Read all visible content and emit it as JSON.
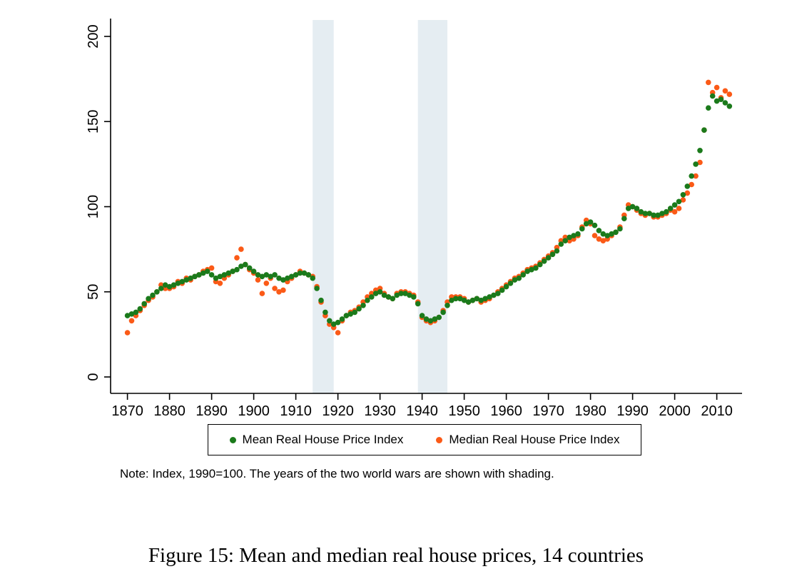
{
  "figure": {
    "note": "Note: Index, 1990=100. The years of the two world wars are shown with shading.",
    "caption": "Figure 15: Mean and median real house prices, 14 countries"
  },
  "legend": {
    "items": [
      {
        "label": "Mean Real House Price Index",
        "color": "#1b7a1b"
      },
      {
        "label": "Median Real House Price Index",
        "color": "#fb5a17"
      }
    ]
  },
  "chart_data": {
    "type": "scatter",
    "title": "",
    "xlabel": "",
    "ylabel": "",
    "ylim": [
      0,
      205
    ],
    "xlim": [
      1866,
      2016
    ],
    "y_ticks": [
      0,
      50,
      100,
      150,
      200
    ],
    "x_ticks": [
      1870,
      1880,
      1890,
      1900,
      1910,
      1920,
      1930,
      1940,
      1950,
      1960,
      1970,
      1980,
      1990,
      2000,
      2010
    ],
    "grid": false,
    "legend_position": "bottom",
    "shading_color": "#e5edf2",
    "shaded_regions": [
      {
        "label": "World War I",
        "start": 1914,
        "end": 1918
      },
      {
        "label": "World War II",
        "start": 1939,
        "end": 1945
      }
    ],
    "x": [
      1870,
      1871,
      1872,
      1873,
      1874,
      1875,
      1876,
      1877,
      1878,
      1879,
      1880,
      1881,
      1882,
      1883,
      1884,
      1885,
      1886,
      1887,
      1888,
      1889,
      1890,
      1891,
      1892,
      1893,
      1894,
      1895,
      1896,
      1897,
      1898,
      1899,
      1900,
      1901,
      1902,
      1903,
      1904,
      1905,
      1906,
      1907,
      1908,
      1909,
      1910,
      1911,
      1912,
      1913,
      1914,
      1915,
      1916,
      1917,
      1918,
      1919,
      1920,
      1921,
      1922,
      1923,
      1924,
      1925,
      1926,
      1927,
      1928,
      1929,
      1930,
      1931,
      1932,
      1933,
      1934,
      1935,
      1936,
      1937,
      1938,
      1939,
      1940,
      1941,
      1942,
      1943,
      1944,
      1945,
      1946,
      1947,
      1948,
      1949,
      1950,
      1951,
      1952,
      1953,
      1954,
      1955,
      1956,
      1957,
      1958,
      1959,
      1960,
      1961,
      1962,
      1963,
      1964,
      1965,
      1966,
      1967,
      1968,
      1969,
      1970,
      1971,
      1972,
      1973,
      1974,
      1975,
      1976,
      1977,
      1978,
      1979,
      1980,
      1981,
      1982,
      1983,
      1984,
      1985,
      1986,
      1987,
      1988,
      1989,
      1990,
      1991,
      1992,
      1993,
      1994,
      1995,
      1996,
      1997,
      1998,
      1999,
      2000,
      2001,
      2002,
      2003,
      2004,
      2005,
      2006,
      2007,
      2008,
      2009,
      2010,
      2011,
      2012,
      2013
    ],
    "series": [
      {
        "name": "Mean Real House Price Index",
        "color": "#1b7a1b",
        "values": [
          36,
          37,
          38,
          40,
          43,
          46,
          48,
          50,
          52,
          54,
          53,
          54,
          55,
          56,
          57,
          58,
          59,
          60,
          61,
          62,
          60,
          58,
          59,
          60,
          61,
          62,
          63,
          65,
          66,
          64,
          62,
          60,
          59,
          60,
          59,
          60,
          58,
          57,
          58,
          59,
          60,
          61,
          61,
          60,
          58,
          52,
          45,
          38,
          33,
          31,
          32,
          34,
          36,
          37,
          38,
          40,
          42,
          45,
          47,
          49,
          50,
          48,
          47,
          46,
          48,
          49,
          49,
          48,
          47,
          43,
          36,
          34,
          33,
          34,
          35,
          38,
          42,
          45,
          46,
          46,
          45,
          44,
          45,
          46,
          45,
          46,
          47,
          48,
          49,
          51,
          53,
          55,
          57,
          58,
          60,
          62,
          63,
          64,
          66,
          68,
          70,
          72,
          74,
          78,
          80,
          82,
          83,
          84,
          87,
          90,
          91,
          89,
          86,
          84,
          83,
          84,
          85,
          87,
          93,
          99,
          100,
          99,
          97,
          96,
          96,
          95,
          95,
          96,
          97,
          99,
          101,
          103,
          107,
          112,
          118,
          125,
          133,
          145,
          158,
          165,
          162,
          163,
          161,
          159
        ]
      },
      {
        "name": "Median Real House Price Index",
        "color": "#fb5a17",
        "values": [
          26,
          33,
          36,
          39,
          42,
          45,
          47,
          50,
          54,
          52,
          52,
          53,
          56,
          55,
          58,
          57,
          59,
          60,
          62,
          63,
          64,
          56,
          55,
          58,
          60,
          62,
          70,
          75,
          66,
          63,
          61,
          57,
          49,
          55,
          58,
          52,
          50,
          51,
          56,
          58,
          60,
          62,
          61,
          60,
          59,
          53,
          44,
          36,
          31,
          29,
          26,
          33,
          36,
          38,
          39,
          41,
          44,
          47,
          49,
          51,
          52,
          49,
          47,
          46,
          49,
          50,
          50,
          49,
          48,
          44,
          35,
          33,
          32,
          33,
          35,
          39,
          44,
          47,
          47,
          47,
          46,
          44,
          45,
          46,
          44,
          45,
          46,
          48,
          50,
          52,
          54,
          56,
          58,
          59,
          61,
          63,
          64,
          65,
          67,
          69,
          71,
          73,
          76,
          80,
          82,
          80,
          81,
          83,
          88,
          92,
          90,
          83,
          81,
          80,
          81,
          83,
          85,
          88,
          95,
          101,
          100,
          98,
          96,
          95,
          96,
          94,
          94,
          95,
          96,
          98,
          97,
          99,
          104,
          108,
          113,
          118,
          126,
          145,
          173,
          167,
          170,
          164,
          168,
          166
        ]
      }
    ]
  }
}
